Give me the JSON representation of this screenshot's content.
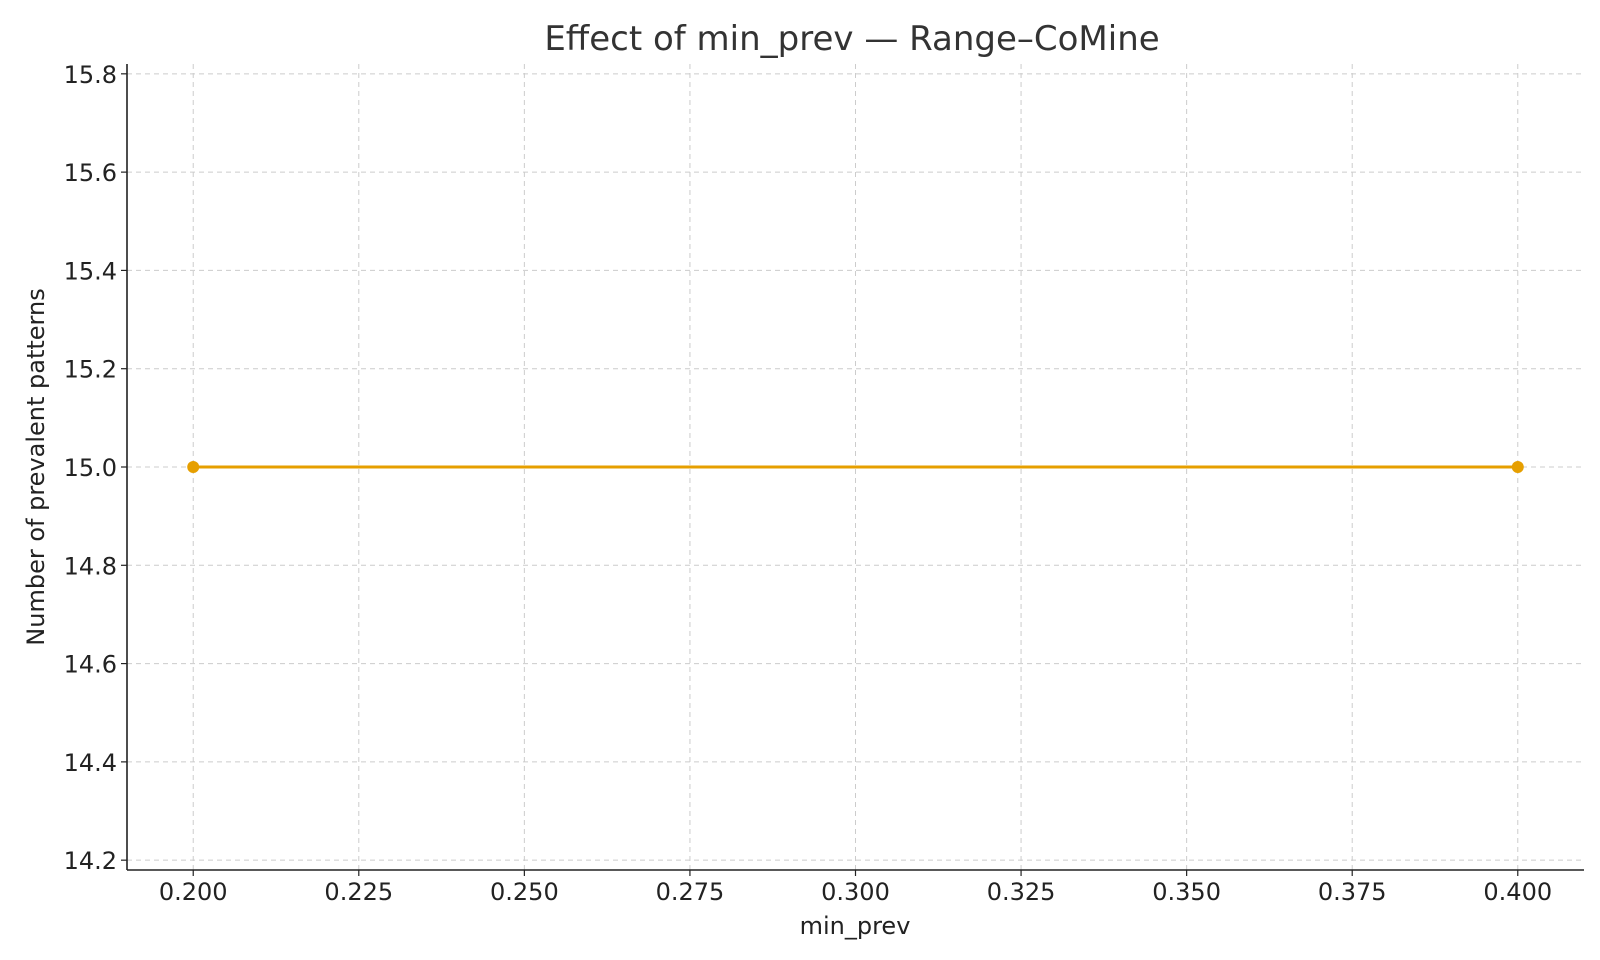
{
  "chart_data": {
    "type": "line",
    "title": "Effect of min_prev — Range–CoMine",
    "xlabel": "min_prev",
    "ylabel": "Number of prevalent patterns",
    "xlim": [
      0.19,
      0.41
    ],
    "ylim": [
      14.18,
      15.82
    ],
    "xticks": [
      0.2,
      0.225,
      0.25,
      0.275,
      0.3,
      0.325,
      0.35,
      0.375,
      0.4
    ],
    "xtick_labels": [
      "0.200",
      "0.225",
      "0.250",
      "0.275",
      "0.300",
      "0.325",
      "0.350",
      "0.375",
      "0.400"
    ],
    "yticks": [
      14.2,
      14.4,
      14.6,
      14.8,
      15.0,
      15.2,
      15.4,
      15.6,
      15.8
    ],
    "ytick_labels": [
      "14.2",
      "14.4",
      "14.6",
      "14.8",
      "15.0",
      "15.2",
      "15.4",
      "15.6",
      "15.8"
    ],
    "grid": true,
    "series": [
      {
        "color": "#e69f00",
        "marker": "circle",
        "x": [
          0.2,
          0.4
        ],
        "y": [
          15.0,
          15.0
        ]
      }
    ]
  }
}
